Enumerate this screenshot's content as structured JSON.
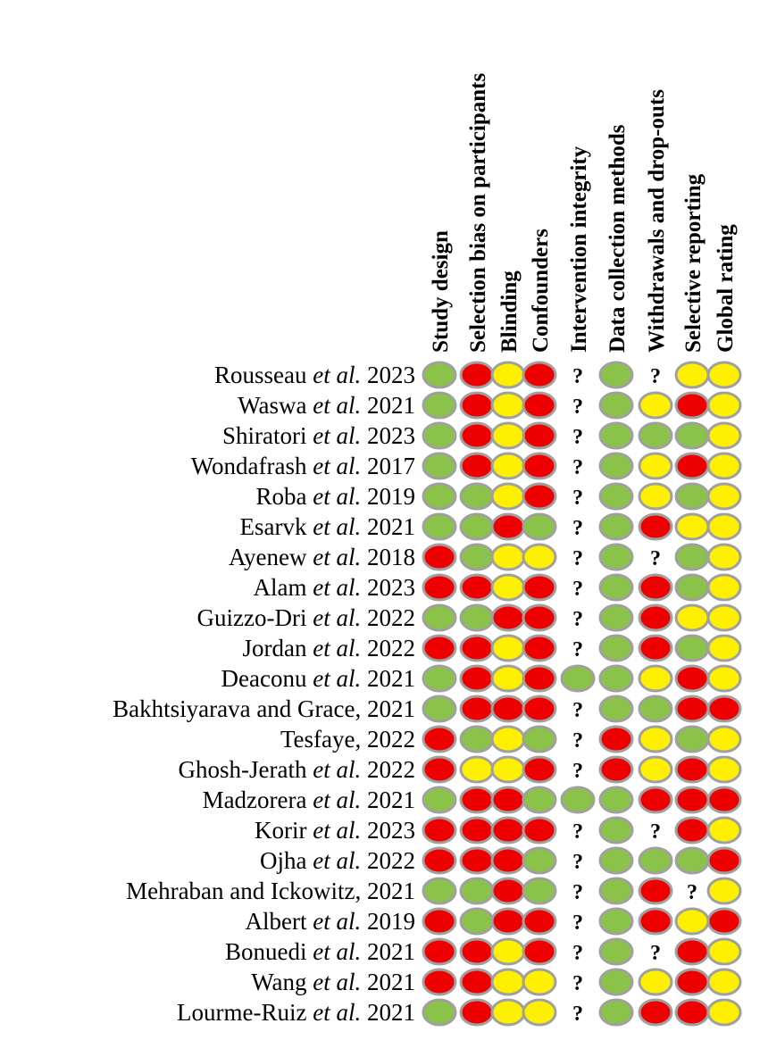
{
  "colors": {
    "low": "#8bc34a",
    "moderate": "#ffef00",
    "high": "#ee0000",
    "outline": "#a0a0a0",
    "unclear": "#000000"
  },
  "chart_data": {
    "type": "table",
    "legend_symbols": {
      "G": "low",
      "Y": "moderate",
      "R": "high",
      "?": "unclear"
    },
    "columns": [
      "Study design",
      "Selection bias on participants",
      "Blinding",
      "Confounders",
      "Intervention integrity",
      "Data collection methods",
      "Withdrawals and drop-outs",
      "Selective reporting",
      "Global rating"
    ],
    "rows": [
      {
        "author": "Rousseau",
        "etal": true,
        "year": "2023",
        "ratings": [
          "G",
          "R",
          "Y",
          "R",
          "?",
          "G",
          "?",
          "Y",
          "Y"
        ]
      },
      {
        "author": "Waswa",
        "etal": true,
        "year": "2021",
        "ratings": [
          "G",
          "R",
          "Y",
          "R",
          "?",
          "G",
          "Y",
          "R",
          "Y"
        ]
      },
      {
        "author": "Shiratori",
        "etal": true,
        "year": "2023",
        "ratings": [
          "G",
          "R",
          "Y",
          "R",
          "?",
          "G",
          "G",
          "G",
          "Y"
        ]
      },
      {
        "author": "Wondafrash",
        "etal": true,
        "year": "2017",
        "ratings": [
          "G",
          "R",
          "Y",
          "R",
          "?",
          "G",
          "Y",
          "R",
          "Y"
        ]
      },
      {
        "author": "Roba",
        "etal": true,
        "year": "2019",
        "ratings": [
          "G",
          "G",
          "Y",
          "R",
          "?",
          "G",
          "Y",
          "G",
          "Y"
        ]
      },
      {
        "author": "Esarvk",
        "etal": true,
        "year": "2021",
        "ratings": [
          "G",
          "G",
          "R",
          "G",
          "?",
          "G",
          "R",
          "Y",
          "Y"
        ]
      },
      {
        "author": "Ayenew",
        "etal": true,
        "year": "2018",
        "ratings": [
          "R",
          "G",
          "Y",
          "Y",
          "?",
          "G",
          "?",
          "G",
          "Y"
        ]
      },
      {
        "author": "Alam",
        "etal": true,
        "year": "2023",
        "ratings": [
          "R",
          "R",
          "Y",
          "R",
          "?",
          "G",
          "R",
          "G",
          "Y"
        ]
      },
      {
        "author": "Guizzo-Dri",
        "etal": true,
        "year": "2022",
        "ratings": [
          "G",
          "G",
          "R",
          "R",
          "?",
          "G",
          "R",
          "Y",
          "Y"
        ]
      },
      {
        "author": "Jordan",
        "etal": true,
        "year": "2022",
        "ratings": [
          "R",
          "R",
          "Y",
          "R",
          "?",
          "G",
          "R",
          "G",
          "Y"
        ]
      },
      {
        "author": "Deaconu",
        "etal": true,
        "year": "2021",
        "ratings": [
          "G",
          "R",
          "Y",
          "R",
          "G",
          "G",
          "Y",
          "R",
          "Y"
        ]
      },
      {
        "author": "Bakhtsiyarava and Grace,",
        "etal": false,
        "year": "2021",
        "ratings": [
          "G",
          "R",
          "R",
          "R",
          "?",
          "G",
          "G",
          "R",
          "R"
        ]
      },
      {
        "author": "Tesfaye,",
        "etal": false,
        "year": "2022",
        "ratings": [
          "R",
          "G",
          "Y",
          "G",
          "?",
          "R",
          "Y",
          "G",
          "Y"
        ]
      },
      {
        "author": "Ghosh-Jerath",
        "etal": true,
        "year": "2022",
        "ratings": [
          "R",
          "Y",
          "Y",
          "R",
          "?",
          "R",
          "Y",
          "R",
          "Y"
        ]
      },
      {
        "author": "Madzorera",
        "etal": true,
        "year": "2021",
        "ratings": [
          "G",
          "R",
          "R",
          "G",
          "G",
          "G",
          "R",
          "R",
          "R"
        ]
      },
      {
        "author": "Korir",
        "etal": true,
        "year": "2023",
        "ratings": [
          "R",
          "R",
          "R",
          "R",
          "?",
          "G",
          "?",
          "R",
          "Y"
        ]
      },
      {
        "author": "Ojha",
        "etal": true,
        "year": "2022",
        "ratings": [
          "R",
          "R",
          "R",
          "G",
          "?",
          "G",
          "G",
          "G",
          "R"
        ]
      },
      {
        "author": "Mehraban and Ickowitz,",
        "etal": false,
        "year": "2021",
        "ratings": [
          "G",
          "G",
          "R",
          "G",
          "?",
          "G",
          "R",
          "?",
          "Y"
        ]
      },
      {
        "author": "Albert",
        "etal": true,
        "year": "2019",
        "ratings": [
          "R",
          "G",
          "R",
          "R",
          "?",
          "G",
          "R",
          "Y",
          "R"
        ]
      },
      {
        "author": "Bonuedi",
        "etal": true,
        "year": "2021",
        "ratings": [
          "R",
          "R",
          "Y",
          "R",
          "?",
          "G",
          "?",
          "R",
          "Y"
        ]
      },
      {
        "author": "Wang",
        "etal": true,
        "year": "2021",
        "ratings": [
          "R",
          "R",
          "Y",
          "Y",
          "?",
          "G",
          "Y",
          "R",
          "Y"
        ]
      },
      {
        "author": "Lourme-Ruiz",
        "etal": true,
        "year": "2021",
        "ratings": [
          "G",
          "R",
          "Y",
          "Y",
          "?",
          "G",
          "R",
          "R",
          "Y"
        ]
      }
    ],
    "etal_text": "et al."
  }
}
